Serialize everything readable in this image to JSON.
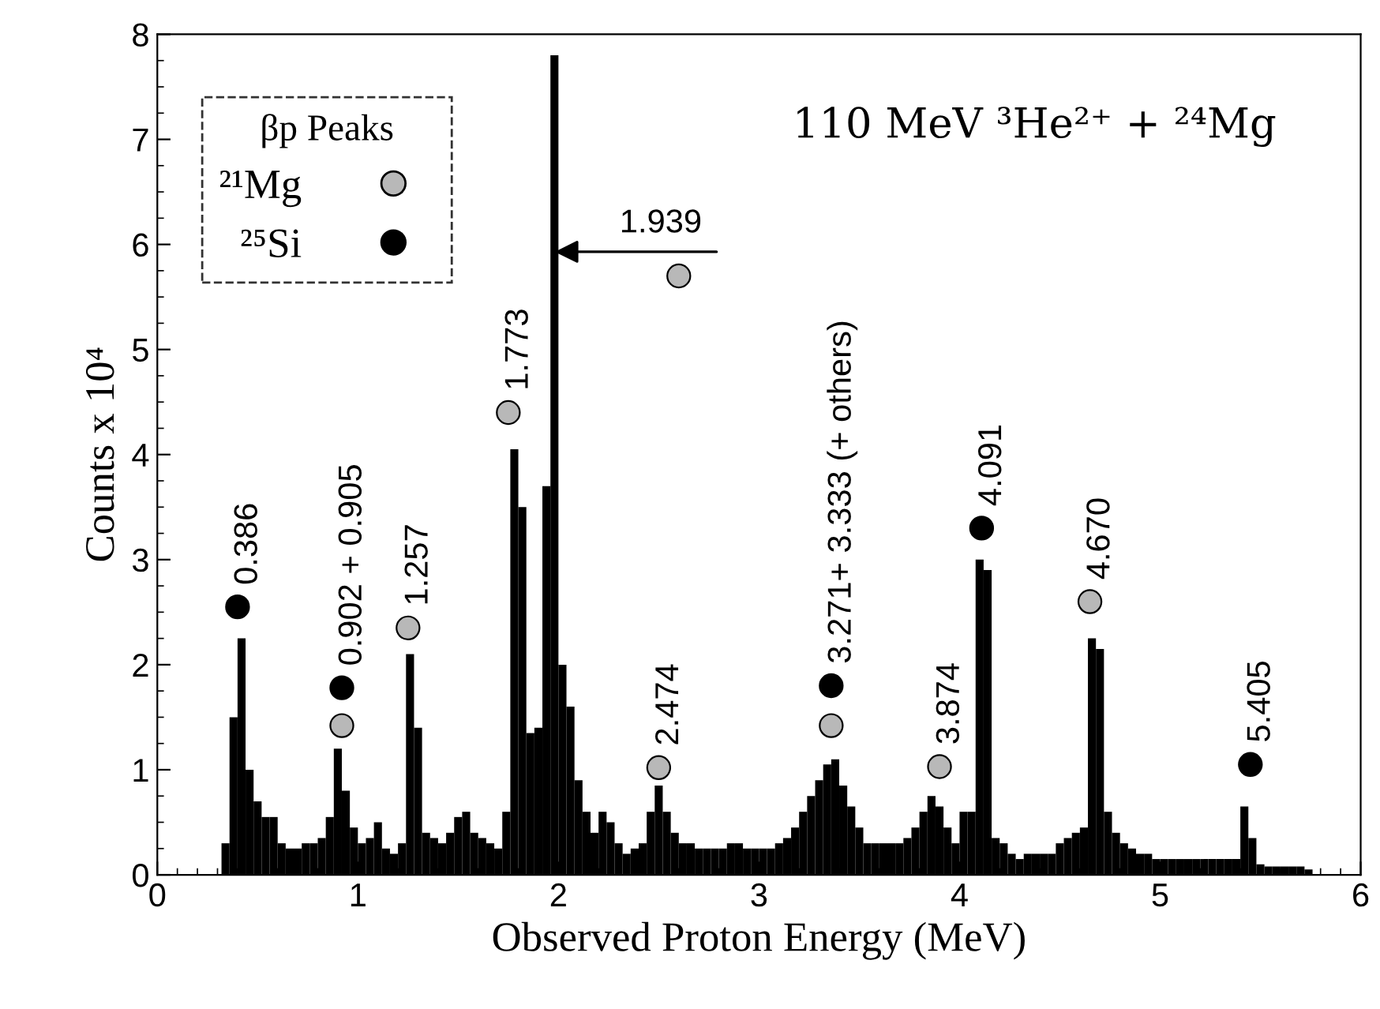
{
  "chart_data": {
    "type": "histogram",
    "xlabel": "Observed Proton Energy (MeV)",
    "ylabel": "Counts x 10⁴",
    "xlim": [
      0,
      6
    ],
    "ylim": [
      0,
      8
    ],
    "xticks": [
      0,
      1,
      2,
      3,
      4,
      5,
      6
    ],
    "yticks": [
      0,
      1,
      2,
      3,
      4,
      5,
      6,
      7,
      8
    ],
    "grid": false,
    "color": "#000000",
    "bins": [
      0.32,
      0.36,
      0.4,
      0.44,
      0.48,
      0.52,
      0.56,
      0.6,
      0.64,
      0.68,
      0.72,
      0.76,
      0.8,
      0.84,
      0.88,
      0.92,
      0.96,
      1.0,
      1.04,
      1.08,
      1.12,
      1.16,
      1.2,
      1.24,
      1.28,
      1.32,
      1.36,
      1.4,
      1.44,
      1.48,
      1.52,
      1.56,
      1.6,
      1.64,
      1.68,
      1.72,
      1.76,
      1.8,
      1.84,
      1.88,
      1.92,
      1.96,
      2.0,
      2.04,
      2.08,
      2.12,
      2.16,
      2.2,
      2.24,
      2.28,
      2.32,
      2.36,
      2.4,
      2.44,
      2.48,
      2.52,
      2.56,
      2.6,
      2.64,
      2.68,
      2.72,
      2.76,
      2.8,
      2.84,
      2.88,
      2.92,
      2.96,
      3.0,
      3.04,
      3.08,
      3.12,
      3.16,
      3.2,
      3.24,
      3.28,
      3.32,
      3.36,
      3.4,
      3.44,
      3.48,
      3.52,
      3.56,
      3.6,
      3.64,
      3.68,
      3.72,
      3.76,
      3.8,
      3.84,
      3.88,
      3.92,
      3.96,
      4.0,
      4.04,
      4.08,
      4.12,
      4.16,
      4.2,
      4.24,
      4.28,
      4.32,
      4.36,
      4.4,
      4.44,
      4.48,
      4.52,
      4.56,
      4.6,
      4.64,
      4.68,
      4.72,
      4.76,
      4.8,
      4.84,
      4.88,
      4.92,
      4.96,
      5.0,
      5.04,
      5.08,
      5.12,
      5.16,
      5.2,
      5.24,
      5.28,
      5.32,
      5.36,
      5.4,
      5.44,
      5.48,
      5.52,
      5.56,
      5.6,
      5.64,
      5.68,
      5.72,
      5.76
    ],
    "values": [
      0.3,
      1.5,
      2.25,
      1.0,
      0.7,
      0.55,
      0.55,
      0.3,
      0.25,
      0.25,
      0.3,
      0.3,
      0.35,
      0.55,
      1.2,
      0.8,
      0.45,
      0.3,
      0.35,
      0.5,
      0.25,
      0.2,
      0.3,
      2.1,
      1.4,
      0.4,
      0.35,
      0.3,
      0.4,
      0.55,
      0.6,
      0.4,
      0.35,
      0.3,
      0.25,
      0.6,
      4.05,
      3.5,
      1.35,
      1.4,
      3.7,
      7.8,
      2.0,
      1.6,
      0.9,
      0.6,
      0.4,
      0.6,
      0.5,
      0.3,
      0.2,
      0.25,
      0.3,
      0.6,
      0.85,
      0.6,
      0.4,
      0.3,
      0.3,
      0.25,
      0.25,
      0.25,
      0.25,
      0.3,
      0.3,
      0.25,
      0.25,
      0.25,
      0.25,
      0.3,
      0.35,
      0.45,
      0.6,
      0.75,
      0.9,
      1.05,
      1.1,
      0.85,
      0.65,
      0.45,
      0.3,
      0.3,
      0.3,
      0.3,
      0.3,
      0.35,
      0.45,
      0.6,
      0.75,
      0.65,
      0.45,
      0.3,
      0.6,
      0.6,
      3.0,
      2.9,
      0.35,
      0.3,
      0.2,
      0.15,
      0.2,
      0.2,
      0.2,
      0.2,
      0.3,
      0.35,
      0.4,
      0.45,
      2.25,
      2.15,
      0.6,
      0.4,
      0.3,
      0.25,
      0.2,
      0.2,
      0.15,
      0.15,
      0.15,
      0.15,
      0.15,
      0.15,
      0.15,
      0.15,
      0.15,
      0.15,
      0.15,
      0.65,
      0.35,
      0.1,
      0.08,
      0.08,
      0.08,
      0.08,
      0.08,
      0.05
    ],
    "series": [
      {
        "type": "scatter",
        "name": "²¹Mg",
        "color": "#b8b8b8",
        "marker": "circle",
        "x": [
          0.92,
          1.25,
          1.75,
          2.6,
          2.5,
          3.36,
          3.9,
          4.65
        ],
        "values": [
          1.42,
          2.35,
          4.4,
          5.7,
          1.02,
          1.42,
          1.03,
          2.6
        ]
      },
      {
        "type": "scatter",
        "name": "²⁵Si",
        "color": "#000000",
        "marker": "circle",
        "x": [
          0.4,
          0.92,
          3.36,
          4.11,
          5.45
        ],
        "values": [
          2.55,
          1.78,
          1.8,
          3.3,
          1.05
        ]
      }
    ],
    "legend": "top left",
    "legend_title": "βp Peaks",
    "annotations": [
      "110 MeV ³He²⁺ + ²⁴Mg",
      {
        "text": "0.386",
        "x": 0.4,
        "y": 2.55
      },
      {
        "text": "0.902 + 0.905",
        "x": 0.92,
        "y": 1.78
      },
      {
        "text": "1.257",
        "x": 1.25,
        "y": 2.35
      },
      {
        "text": "1.773",
        "x": 1.75,
        "y": 4.4
      },
      {
        "text": "2.474",
        "x": 2.5,
        "y": 1.02
      },
      {
        "text": "3.271+ 3.333 (+ others)",
        "x": 3.36,
        "y": 1.8
      },
      {
        "text": "3.874",
        "x": 3.9,
        "y": 1.03
      },
      {
        "text": "4.091",
        "x": 4.11,
        "y": 3.3
      },
      {
        "text": "4.670",
        "x": 4.65,
        "y": 2.6
      },
      {
        "text": "5.405",
        "x": 5.45,
        "y": 1.05
      },
      {
        "text": "1.939",
        "x": 1.96,
        "y": 5.93
      }
    ]
  }
}
